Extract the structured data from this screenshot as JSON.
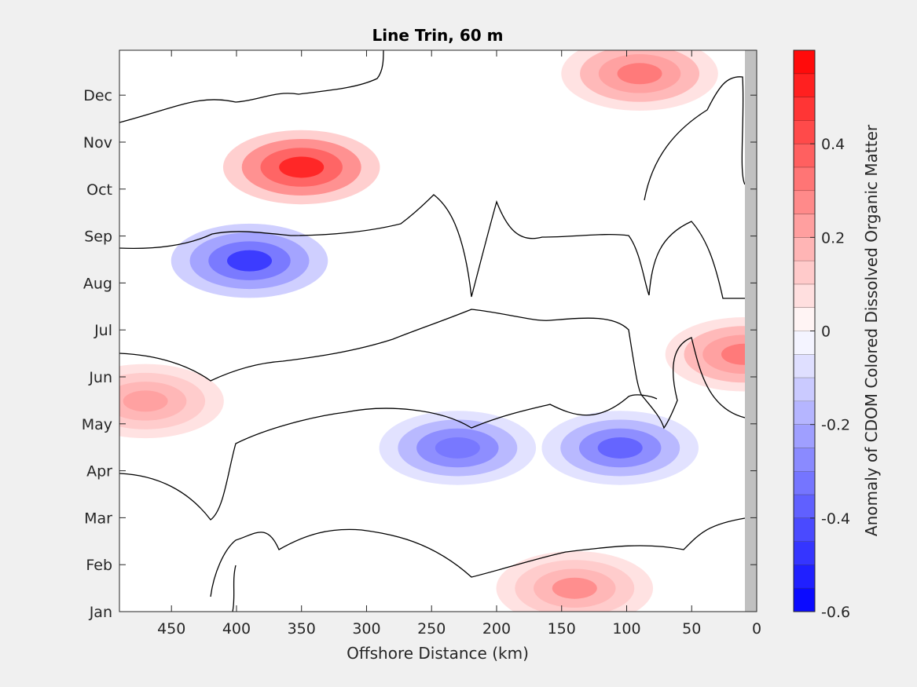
{
  "chart_data": {
    "type": "heatmap",
    "title": "Line Trin, 60 m",
    "xlabel": "Offshore Distance (km)",
    "ylabel": "",
    "colorbar_label": "Anomaly of CDOM Colored Dissolved Organic Matter",
    "x_reversed": true,
    "xlim": [
      490,
      0
    ],
    "x_ticks": [
      450,
      400,
      350,
      300,
      250,
      200,
      150,
      100,
      50,
      0
    ],
    "x_tick_labels": [
      "450",
      "400",
      "350",
      "300",
      "250",
      "200",
      "150",
      "100",
      "50",
      "0"
    ],
    "y_ticks": [
      "Jan",
      "Feb",
      "Mar",
      "Apr",
      "May",
      "Jun",
      "Jul",
      "Aug",
      "Sep",
      "Oct",
      "Nov",
      "Dec"
    ],
    "clim": [
      -0.6,
      0.6
    ],
    "colorbar_ticks": [
      -0.6,
      -0.4,
      -0.2,
      0,
      0.2,
      0.4
    ],
    "colorbar_tick_labels": [
      "-0.6",
      "-0.4",
      "-0.2",
      "0",
      "0.2",
      "0.4"
    ],
    "color_levels": 24,
    "colormap": {
      "negative": "#0000ff",
      "zero": "#ffffff",
      "positive": "#ff0000"
    },
    "no_data_color": "#c0c0c0",
    "no_data_x_range": [
      10,
      0
    ],
    "zero_contour_color": "#000000",
    "grid": false,
    "features": [
      {
        "label": "positive anomaly",
        "x_center": 350,
        "month_center": "Oct",
        "peak_value": 0.5
      },
      {
        "label": "negative anomaly",
        "x_center": 390,
        "month_center": "Aug",
        "peak_value": -0.45
      },
      {
        "label": "negative anomaly",
        "x_center": 230,
        "month_center": "Apr",
        "peak_value": -0.35
      },
      {
        "label": "negative anomaly",
        "x_center": 105,
        "month_center": "Apr",
        "peak_value": -0.38
      },
      {
        "label": "positive anomaly",
        "x_center": 90,
        "month_center": "Dec",
        "peak_value": 0.3
      },
      {
        "label": "positive anomaly",
        "x_center": 10,
        "month_center": "Jun",
        "peak_value": 0.33
      },
      {
        "label": "positive anomaly",
        "x_center": 140,
        "month_center": "Jan",
        "peak_value": 0.25
      },
      {
        "label": "positive anomaly",
        "x_center": 470,
        "month_center": "May",
        "peak_value": 0.22
      }
    ]
  }
}
